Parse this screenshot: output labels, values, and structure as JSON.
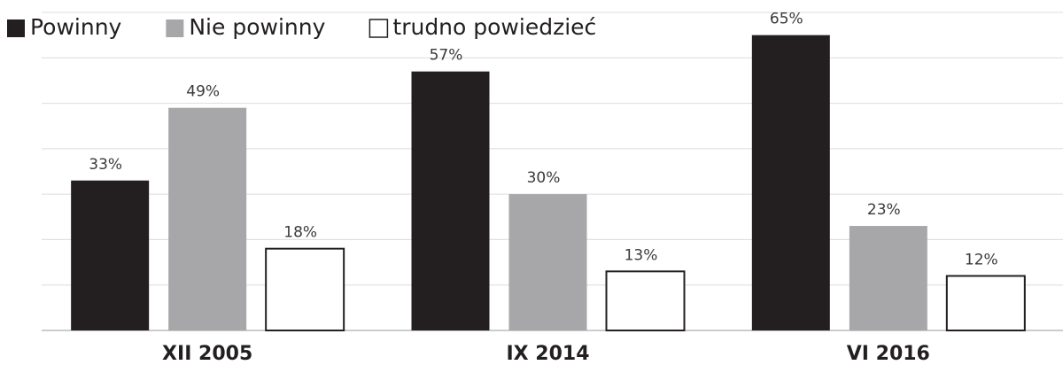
{
  "chart_data": {
    "type": "bar",
    "categories": [
      "XII 2005",
      "IX 2014",
      "VI 2016"
    ],
    "series": [
      {
        "name": "Powinny",
        "color": "#231f20",
        "values": [
          33,
          57,
          65
        ],
        "value_labels": [
          "33%",
          "57%",
          "65%"
        ]
      },
      {
        "name": "Nie powinny",
        "color": "#a7a7a9",
        "values": [
          49,
          30,
          23
        ],
        "value_labels": [
          "49%",
          "30%",
          "23%"
        ]
      },
      {
        "name": "trudno powiedzieć",
        "color": "#ffffff",
        "values": [
          18,
          13,
          12
        ],
        "value_labels": [
          "18%",
          "13%",
          "12%"
        ]
      }
    ],
    "ylim": [
      0,
      70
    ],
    "yticks": [
      0,
      10,
      20,
      30,
      40,
      50,
      60,
      70
    ],
    "grid": true,
    "legend": "top-left"
  }
}
